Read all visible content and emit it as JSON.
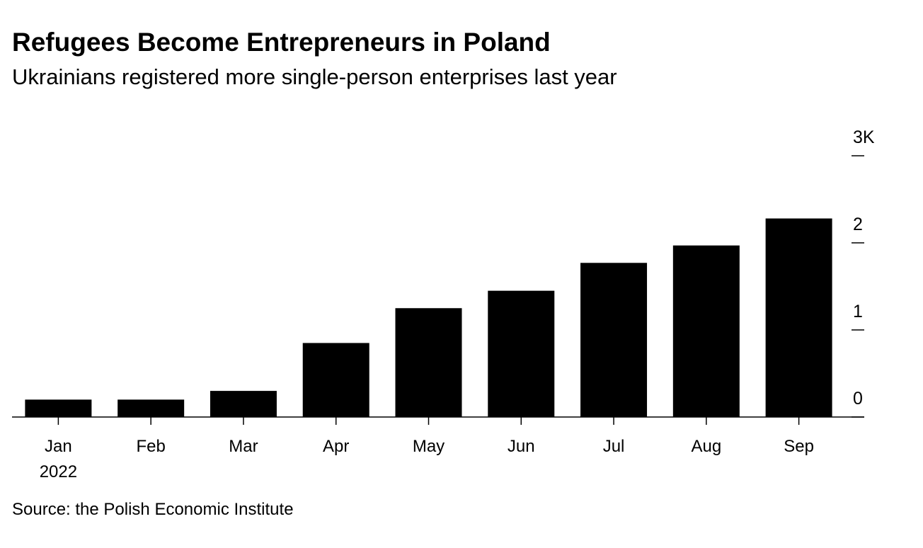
{
  "chart_data": {
    "type": "bar",
    "title": "Refugees Become Entrepreneurs in Poland",
    "subtitle": "Ukrainians registered more single-person enterprises last year",
    "categories": [
      "Jan",
      "Feb",
      "Mar",
      "Apr",
      "May",
      "Jun",
      "Jul",
      "Aug",
      "Sep"
    ],
    "x_sublabel": "2022",
    "values": [
      0.2,
      0.2,
      0.3,
      0.85,
      1.25,
      1.45,
      1.77,
      1.97,
      2.28
    ],
    "color": "#000000",
    "ylim": [
      0,
      3
    ],
    "yticks": [
      0,
      1,
      2,
      {
        "value": 3,
        "label": "3K"
      }
    ],
    "source": "Source: the Polish Economic Institute"
  }
}
